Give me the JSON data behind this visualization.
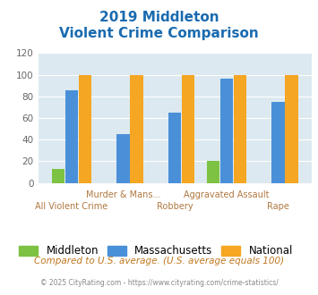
{
  "title_line1": "2019 Middleton",
  "title_line2": "Violent Crime Comparison",
  "categories": [
    "All Violent Crime",
    "Murder & Mans...",
    "Robbery",
    "Aggravated Assault",
    "Rape"
  ],
  "middleton": [
    13,
    0,
    0,
    20,
    0
  ],
  "massachusetts": [
    86,
    45,
    65,
    96,
    75
  ],
  "national": [
    100,
    100,
    100,
    100,
    100
  ],
  "color_middleton": "#7dc242",
  "color_massachusetts": "#4a90d9",
  "color_national": "#f5a623",
  "ylim": [
    0,
    120
  ],
  "yticks": [
    0,
    20,
    40,
    60,
    80,
    100,
    120
  ],
  "title_color": "#1a6bb0",
  "axis_bg": "#dce9f0",
  "xlabel_color_upper": "#b07840",
  "xlabel_color_lower": "#b07840",
  "footer_text": "Compared to U.S. average. (U.S. average equals 100)",
  "credit_text": "© 2025 CityRating.com - https://www.cityrating.com/crime-statistics/",
  "legend_labels": [
    "Middleton",
    "Massachusetts",
    "National"
  ],
  "upper_labels": [
    "",
    "Murder & Mans...",
    "",
    "Aggravated Assault",
    ""
  ],
  "lower_labels": [
    "All Violent Crime",
    "",
    "Robbery",
    "",
    "Rape"
  ]
}
